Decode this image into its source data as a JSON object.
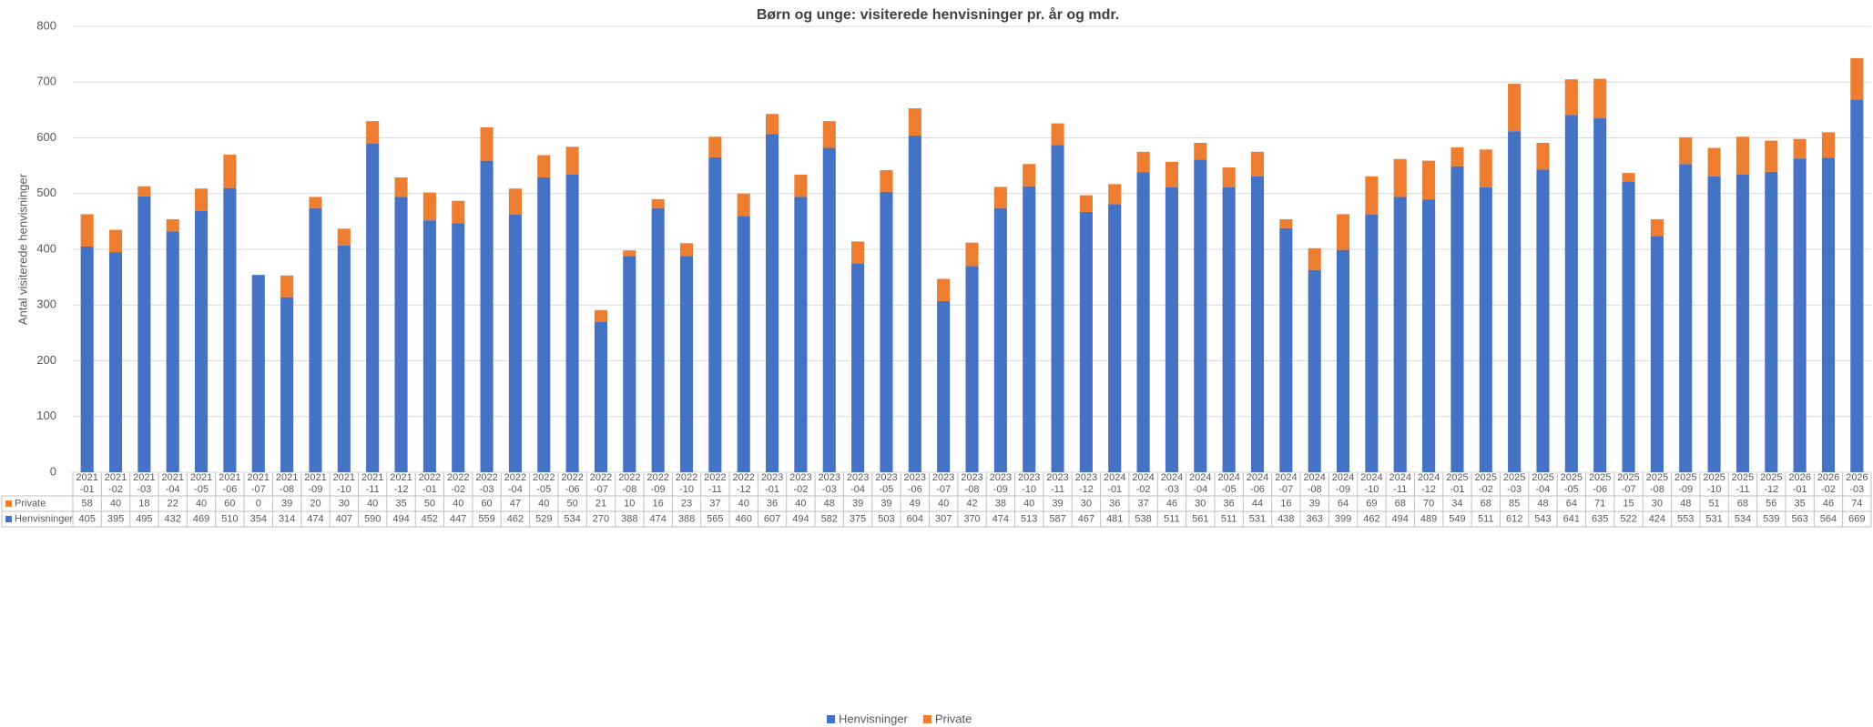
{
  "chart_data": {
    "type": "stacked_bar",
    "title": "Børn og unge: visiterede henvisninger pr. år og mdr.",
    "y_label": "Antal visiterede henvisninger",
    "categories": [
      [
        "2021",
        "-01"
      ],
      [
        "2021",
        "-02"
      ],
      [
        "2021",
        "-03"
      ],
      [
        "2021",
        "-04"
      ],
      [
        "2021",
        "-05"
      ],
      [
        "2021",
        "-06"
      ],
      [
        "2021",
        "-07"
      ],
      [
        "2021",
        "-08"
      ],
      [
        "2021",
        "-09"
      ],
      [
        "2021",
        "-10"
      ],
      [
        "2021",
        "-11"
      ],
      [
        "2021",
        "-12"
      ],
      [
        "2022",
        "-01"
      ],
      [
        "2022",
        "-02"
      ],
      [
        "2022",
        "-03"
      ],
      [
        "2022",
        "-04"
      ],
      [
        "2022",
        "-05"
      ],
      [
        "2022",
        "-06"
      ],
      [
        "2022",
        "-07"
      ],
      [
        "2022",
        "-08"
      ],
      [
        "2022",
        "-09"
      ],
      [
        "2022",
        "-10"
      ],
      [
        "2022",
        "-11"
      ],
      [
        "2022",
        "-12"
      ],
      [
        "2023",
        "-01"
      ],
      [
        "2023",
        "-02"
      ],
      [
        "2023",
        "-03"
      ],
      [
        "2023",
        "-04"
      ],
      [
        "2023",
        "-05"
      ],
      [
        "2023",
        "-06"
      ],
      [
        "2023",
        "-07"
      ],
      [
        "2023",
        "-08"
      ],
      [
        "2023",
        "-09"
      ],
      [
        "2023",
        "-10"
      ],
      [
        "2023",
        "-11"
      ],
      [
        "2023",
        "-12"
      ],
      [
        "2024",
        "-01"
      ],
      [
        "2024",
        "-02"
      ],
      [
        "2024",
        "-03"
      ],
      [
        "2024",
        "-04"
      ],
      [
        "2024",
        "-05"
      ],
      [
        "2024",
        "-06"
      ],
      [
        "2024",
        "-07"
      ],
      [
        "2024",
        "-08"
      ],
      [
        "2024",
        "-09"
      ],
      [
        "2024",
        "-10"
      ],
      [
        "2024",
        "-11"
      ],
      [
        "2024",
        "-12"
      ],
      [
        "2025",
        "-01"
      ],
      [
        "2025",
        "-02"
      ],
      [
        "2025",
        "-03"
      ],
      [
        "2025",
        "-04"
      ],
      [
        "2025",
        "-05"
      ],
      [
        "2025",
        "-06"
      ],
      [
        "2025",
        "-07"
      ],
      [
        "2025",
        "-08"
      ],
      [
        "2025",
        "-09"
      ],
      [
        "2025",
        "-10"
      ],
      [
        "2025",
        "-11"
      ],
      [
        "2025",
        "-12"
      ],
      [
        "2026",
        "-01"
      ],
      [
        "2026",
        "-02"
      ],
      [
        "2026",
        "-03"
      ]
    ],
    "series": [
      {
        "name": "Henvisninger",
        "color": "#4472c4",
        "values": [
          405,
          395,
          495,
          432,
          469,
          510,
          354,
          314,
          474,
          407,
          590,
          494,
          452,
          447,
          559,
          462,
          529,
          534,
          270,
          388,
          474,
          388,
          565,
          460,
          607,
          494,
          582,
          375,
          503,
          604,
          307,
          370,
          474,
          513,
          587,
          467,
          481,
          538,
          511,
          561,
          511,
          531,
          438,
          363,
          399,
          462,
          494,
          489,
          549,
          511,
          612,
          543,
          641,
          635,
          522,
          424,
          553,
          531,
          534,
          539,
          563,
          564,
          669
        ]
      },
      {
        "name": "Private",
        "color": "#ed7d31",
        "values": [
          58,
          40,
          18,
          22,
          40,
          60,
          0,
          39,
          20,
          30,
          40,
          35,
          50,
          40,
          60,
          47,
          40,
          50,
          21,
          10,
          16,
          23,
          37,
          40,
          36,
          40,
          48,
          39,
          39,
          49,
          40,
          42,
          38,
          40,
          39,
          30,
          36,
          37,
          46,
          30,
          36,
          44,
          16,
          39,
          64,
          69,
          68,
          70,
          34,
          68,
          85,
          48,
          64,
          71,
          15,
          30,
          48,
          51,
          68,
          56,
          35,
          46,
          74
        ]
      }
    ],
    "ylim": [
      0,
      800
    ],
    "yticks": [
      0,
      100,
      200,
      300,
      400,
      500,
      600,
      700,
      800
    ],
    "grid": true,
    "legend": "bottom"
  }
}
